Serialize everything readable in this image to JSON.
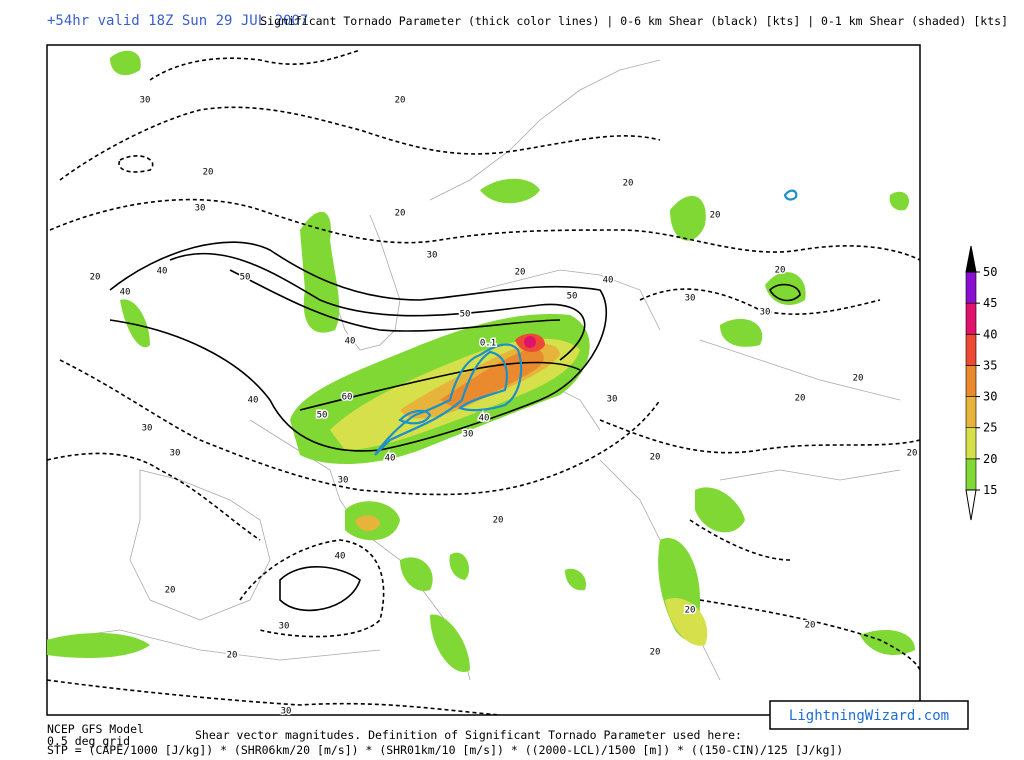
{
  "header": {
    "valid": "+54hr valid 18Z Sun 29 JUL 2007",
    "title": "Significant Tornado Parameter (thick color lines) | 0-6 km Shear (black) [kts] | 0-1 km Shear (shaded) [kts]"
  },
  "footer": {
    "model": "NCEP GFS Model",
    "grid": "0.5 deg grid",
    "definition": "Shear vector magnitudes. Definition of Significant Tornado Parameter used here:",
    "formula": "STP = (CAPE/1000 [J/kg]) * (SHR06km/20 [m/s]) * (SHR01km/10 [m/s]) * ((2000-LCL)/1500 [m]) * ((150-CIN)/125 [J/kg])",
    "credit": "LightningWizard.com"
  },
  "colorbar": {
    "levels": [
      15,
      20,
      25,
      30,
      35,
      40,
      45,
      50
    ],
    "colors": [
      "#7fd833",
      "#d6e04a",
      "#e6b43a",
      "#ea8a2e",
      "#ec4a34",
      "#e0136c",
      "#8a10d0"
    ]
  },
  "contour_labels": [
    30,
    20,
    20,
    30,
    20,
    20,
    20,
    20,
    40,
    40,
    50,
    30,
    20,
    40,
    30,
    20,
    30,
    50,
    50,
    40,
    60,
    50,
    40,
    30,
    40,
    40,
    30,
    30,
    20,
    20,
    30,
    30,
    20,
    40,
    20,
    30,
    20,
    20,
    20,
    20,
    20,
    20,
    30,
    0.1
  ]
}
